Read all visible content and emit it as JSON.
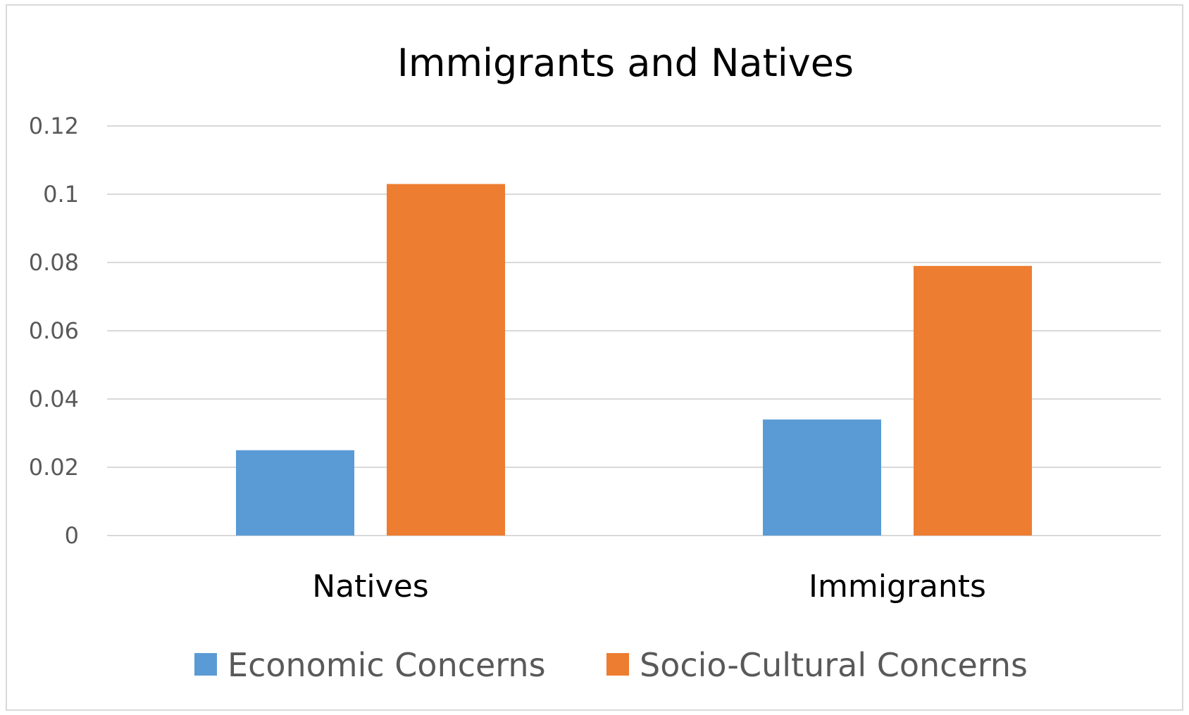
{
  "chart_data": {
    "type": "bar",
    "title": "Immigrants and Natives",
    "xlabel": "",
    "ylabel": "",
    "categories": [
      "Natives",
      "Immigrants"
    ],
    "series": [
      {
        "name": "Economic Concerns",
        "color": "#5b9bd5",
        "values": [
          0.025,
          0.034
        ]
      },
      {
        "name": "Socio-Cultural Concerns",
        "color": "#ed7d31",
        "values": [
          0.103,
          0.079
        ]
      }
    ],
    "ylim": [
      0,
      0.12
    ],
    "yticks": [
      "0",
      "0.02",
      "0.04",
      "0.06",
      "0.08",
      "0.1",
      "0.12"
    ],
    "ytick_values": [
      0,
      0.02,
      0.04,
      0.06,
      0.08,
      0.1,
      0.12
    ],
    "grid": true,
    "legend_position": "bottom",
    "gridline_color": "#d9d9d9"
  }
}
